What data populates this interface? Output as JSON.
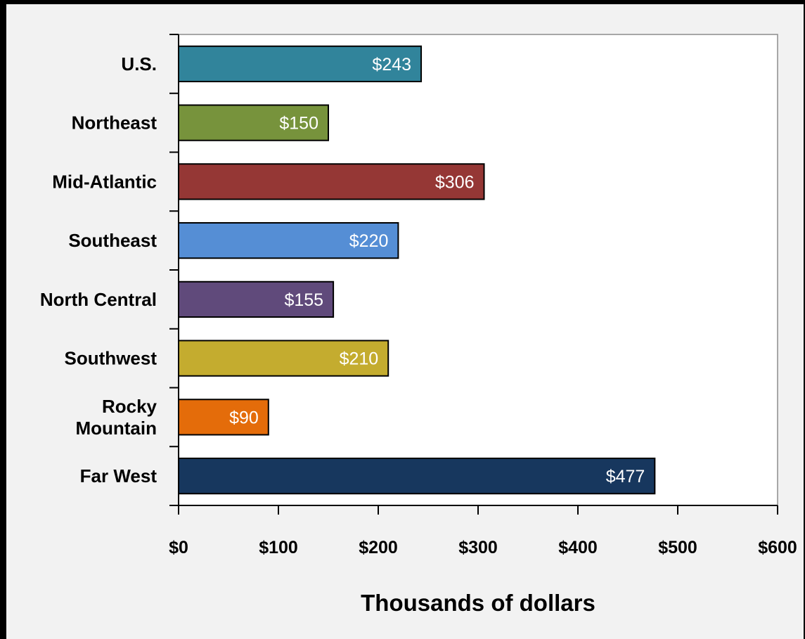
{
  "chart_data": {
    "type": "bar",
    "orientation": "horizontal",
    "categories": [
      "U.S.",
      "Northeast",
      "Mid-Atlantic",
      "Southeast",
      "North Central",
      "Southwest",
      "Rocky Mountain",
      "Far West"
    ],
    "category_lines": [
      [
        "U.S."
      ],
      [
        "Northeast"
      ],
      [
        "Mid-Atlantic"
      ],
      [
        "Southeast"
      ],
      [
        "North Central"
      ],
      [
        "Southwest"
      ],
      [
        "Rocky",
        "Mountain"
      ],
      [
        "Far West"
      ]
    ],
    "values": [
      243,
      150,
      306,
      220,
      155,
      210,
      90,
      477
    ],
    "data_labels": [
      "$243",
      "$150",
      "$306",
      "$220",
      "$155",
      "$210",
      "$90",
      "$477"
    ],
    "colors": [
      "#31849b",
      "#77933c",
      "#953735",
      "#558ed5",
      "#604a7b",
      "#c4ac2f",
      "#e46c0a",
      "#17375e"
    ],
    "xlabel": "Thousands of dollars",
    "ylabel": "",
    "title": "",
    "xlim": [
      0,
      600
    ],
    "x_ticks": [
      0,
      100,
      200,
      300,
      400,
      500,
      600
    ],
    "x_tick_labels": [
      "$0",
      "$100",
      "$200",
      "$300",
      "$400",
      "$500",
      "$600"
    ],
    "grid": false,
    "legend": "none",
    "plot_background": "#ffffff",
    "chart_background": "#f2f2f2"
  }
}
